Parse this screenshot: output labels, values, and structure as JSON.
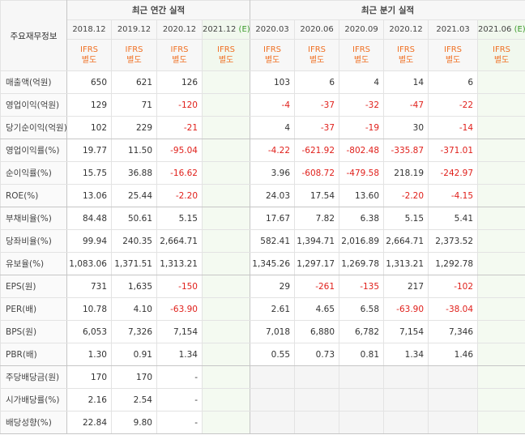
{
  "table": {
    "row_header": "주요재무정보",
    "groups": [
      {
        "title": "최근 연간 실적",
        "periods": [
          {
            "date": "2018.12",
            "basis": [
              "IFRS",
              "별도"
            ]
          },
          {
            "date": "2019.12",
            "basis": [
              "IFRS",
              "별도"
            ]
          },
          {
            "date": "2020.12",
            "basis": [
              "IFRS",
              "별도"
            ]
          },
          {
            "date": "2021.12",
            "estimate": "(E)",
            "basis": [
              "IFRS",
              "별도"
            ]
          }
        ]
      },
      {
        "title": "최근 분기 실적",
        "periods": [
          {
            "date": "2020.03",
            "basis": [
              "IFRS",
              "별도"
            ]
          },
          {
            "date": "2020.06",
            "basis": [
              "IFRS",
              "별도"
            ]
          },
          {
            "date": "2020.09",
            "basis": [
              "IFRS",
              "별도"
            ]
          },
          {
            "date": "2020.12",
            "basis": [
              "IFRS",
              "별도"
            ]
          },
          {
            "date": "2021.03",
            "basis": [
              "IFRS",
              "별도"
            ]
          },
          {
            "date": "2021.06",
            "estimate": "(E)",
            "basis": [
              "IFRS",
              "별도"
            ]
          }
        ]
      }
    ],
    "sections": [
      [
        {
          "label": "매출액(억원)",
          "values": [
            "650",
            "621",
            "126",
            null,
            "103",
            "6",
            "4",
            "14",
            "6",
            null
          ]
        },
        {
          "label": "영업이익(억원)",
          "values": [
            "129",
            "71",
            "-120",
            null,
            "-4",
            "-37",
            "-32",
            "-47",
            "-22",
            null
          ]
        },
        {
          "label": "당기순이익(억원)",
          "values": [
            "102",
            "229",
            "-21",
            null,
            "4",
            "-37",
            "-19",
            "30",
            "-14",
            null
          ]
        }
      ],
      [
        {
          "label": "영업이익률(%)",
          "values": [
            "19.77",
            "11.50",
            "-95.04",
            null,
            "-4.22",
            "-621.92",
            "-802.48",
            "-335.87",
            "-371.01",
            null
          ]
        },
        {
          "label": "순이익률(%)",
          "values": [
            "15.75",
            "36.88",
            "-16.62",
            null,
            "3.96",
            "-608.72",
            "-479.58",
            "218.19",
            "-242.97",
            null
          ]
        },
        {
          "label": "ROE(%)",
          "values": [
            "13.06",
            "25.44",
            "-2.20",
            null,
            "24.03",
            "17.54",
            "13.60",
            "-2.20",
            "-4.15",
            null
          ]
        }
      ],
      [
        {
          "label": "부채비율(%)",
          "values": [
            "84.48",
            "50.61",
            "5.15",
            null,
            "17.67",
            "7.82",
            "6.38",
            "5.15",
            "5.41",
            null
          ]
        },
        {
          "label": "당좌비율(%)",
          "values": [
            "99.94",
            "240.35",
            "2,664.71",
            null,
            "582.41",
            "1,394.71",
            "2,016.89",
            "2,664.71",
            "2,373.52",
            null
          ]
        },
        {
          "label": "유보율(%)",
          "values": [
            "1,083.06",
            "1,371.51",
            "1,313.21",
            null,
            "1,345.26",
            "1,297.17",
            "1,269.78",
            "1,313.21",
            "1,292.78",
            null
          ]
        }
      ],
      [
        {
          "label": "EPS(원)",
          "values": [
            "731",
            "1,635",
            "-150",
            null,
            "29",
            "-261",
            "-135",
            "217",
            "-102",
            null
          ]
        },
        {
          "label": "PER(배)",
          "values": [
            "10.78",
            "4.10",
            "-63.90",
            null,
            "2.61",
            "4.65",
            "6.58",
            "-63.90",
            "-38.04",
            null
          ]
        },
        {
          "label": "BPS(원)",
          "values": [
            "6,053",
            "7,326",
            "7,154",
            null,
            "7,018",
            "6,880",
            "6,782",
            "7,154",
            "7,346",
            null
          ]
        },
        {
          "label": "PBR(배)",
          "values": [
            "1.30",
            "0.91",
            "1.34",
            null,
            "0.55",
            "0.73",
            "0.81",
            "1.34",
            "1.46",
            null
          ]
        }
      ],
      [
        {
          "label": "주당배당금(원)",
          "values": [
            "170",
            "170",
            "-",
            null,
            null,
            null,
            null,
            null,
            null,
            null
          ]
        },
        {
          "label": "시가배당률(%)",
          "values": [
            "2.16",
            "2.54",
            "-",
            null,
            null,
            null,
            null,
            null,
            null,
            null
          ]
        },
        {
          "label": "배당성향(%)",
          "values": [
            "22.84",
            "9.80",
            "-",
            null,
            null,
            null,
            null,
            null,
            null,
            null
          ]
        }
      ]
    ]
  }
}
